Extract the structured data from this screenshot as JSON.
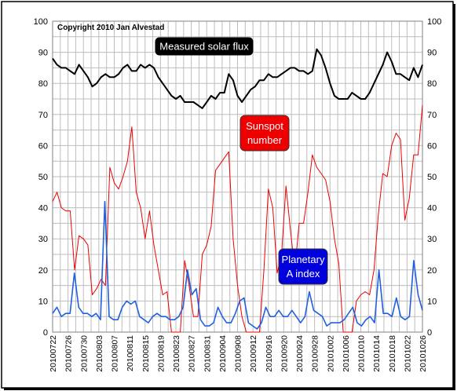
{
  "chart_data": {
    "type": "line",
    "copyright": "Copyright 2010 Jan Alvestad",
    "ylim": [
      0,
      100
    ],
    "y_ticks": [
      0,
      10,
      20,
      30,
      40,
      50,
      60,
      70,
      80,
      90,
      100
    ],
    "x_tick_labels": [
      "20100722",
      "20100726",
      "20100730",
      "20100803",
      "20100807",
      "20100811",
      "20100815",
      "20100819",
      "20100823",
      "20100827",
      "20100831",
      "20100904",
      "20100908",
      "20100912",
      "20100916",
      "20100920",
      "20100924",
      "20100928",
      "20101002",
      "20101006",
      "20101010",
      "20101014",
      "20101018",
      "20101022",
      "20101026"
    ],
    "x_start": "20100722",
    "x_end": "20101026",
    "series": [
      {
        "name": "Measured solar flux",
        "color": "#000000",
        "label_bg": "#000000",
        "label_fg": "#ffffff",
        "values": [
          88,
          86,
          85,
          85,
          84,
          83,
          86,
          84,
          82,
          79,
          80,
          82,
          83,
          82,
          82,
          83,
          85,
          86,
          84,
          84,
          86,
          85,
          86,
          85,
          82,
          80,
          78,
          76,
          75,
          76,
          74,
          74,
          74,
          73,
          72,
          74,
          76,
          75,
          77,
          77,
          83,
          81,
          76,
          74,
          76,
          78,
          79,
          81,
          81,
          83,
          82,
          82,
          83,
          84,
          85,
          85,
          84,
          84,
          83,
          84,
          91,
          89,
          85,
          80,
          76,
          75,
          75,
          75,
          77,
          76,
          75,
          75,
          77,
          80,
          83,
          86,
          90,
          87,
          83,
          83,
          82,
          81,
          85,
          82,
          86
        ]
      },
      {
        "name": "Sunspot number",
        "label_lines": [
          "Sunspot",
          "number"
        ],
        "color": "#ee0000",
        "label_bg": "#ee0000",
        "label_fg": "#ffffff",
        "values": [
          42,
          45,
          40,
          39,
          39,
          20,
          31,
          30,
          28,
          12,
          14,
          17,
          15,
          53,
          48,
          46,
          50,
          55,
          66,
          45,
          40,
          30,
          39,
          28,
          20,
          12,
          13,
          0,
          0,
          0,
          23,
          15,
          5,
          5,
          25,
          28,
          34,
          52,
          54,
          56,
          58,
          30,
          15,
          5,
          0,
          0,
          0,
          0,
          20,
          46,
          40,
          19,
          25,
          47,
          33,
          20,
          35,
          35,
          45,
          57,
          53,
          51,
          49,
          42,
          30,
          22,
          0,
          0,
          0,
          10,
          12,
          13,
          12,
          20,
          38,
          51,
          50,
          60,
          64,
          62,
          36,
          43,
          57,
          57,
          73
        ]
      },
      {
        "name": "Planetary A index",
        "label_lines": [
          "Planetary",
          "A index"
        ],
        "color": "#2060e0",
        "label_bg": "#0000dd",
        "label_fg": "#ffffff",
        "values": [
          6,
          8,
          5,
          6,
          6,
          19,
          8,
          6,
          6,
          5,
          6,
          4,
          42,
          5,
          4,
          4,
          8,
          10,
          9,
          10,
          5,
          4,
          3,
          5,
          6,
          5,
          5,
          4,
          4,
          5,
          8,
          20,
          12,
          14,
          4,
          2,
          2,
          3,
          8,
          5,
          3,
          3,
          6,
          10,
          11,
          3,
          2,
          1,
          3,
          8,
          5,
          5,
          7,
          5,
          5,
          7,
          5,
          3,
          5,
          13,
          7,
          6,
          5,
          2,
          3,
          3,
          3,
          4,
          6,
          8,
          3,
          2,
          4,
          5,
          3,
          20,
          6,
          6,
          5,
          11,
          5,
          4,
          5,
          23,
          12,
          7
        ]
      }
    ],
    "grid": true,
    "legend": "inline labels"
  }
}
